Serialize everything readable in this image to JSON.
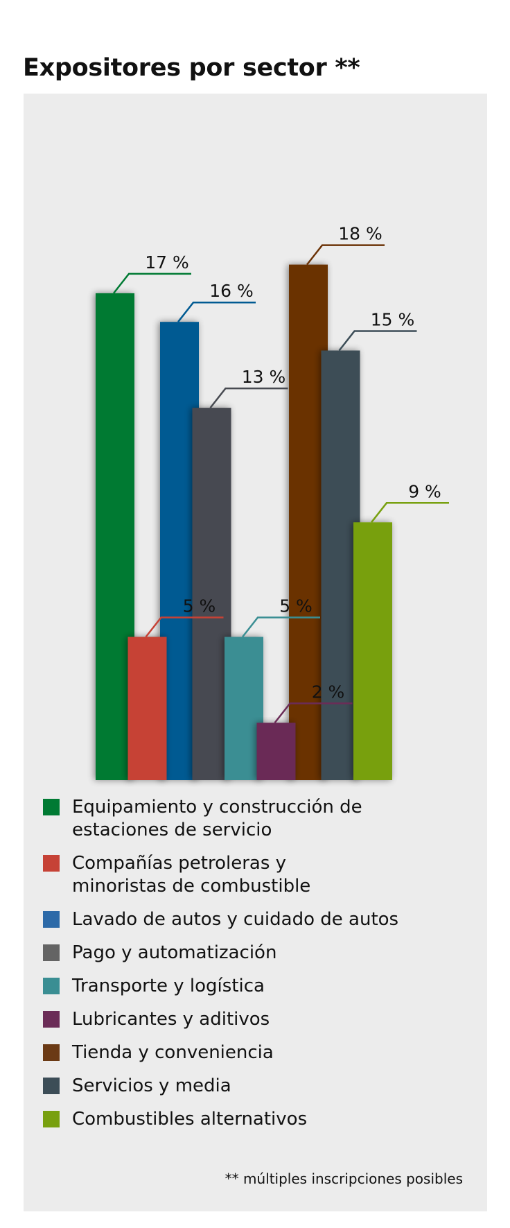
{
  "title": "Expositores por sector **",
  "footnote": "** múltiples inscripciones posibles",
  "chart_data": {
    "type": "bar",
    "title": "Expositores por sector **",
    "unit": "%",
    "ylim": [
      0,
      18
    ],
    "grid": false,
    "legend_placement": "bottom",
    "categories": [
      "Equipamiento y construcción de estaciones de servicio",
      "Compañías petroleras y minoristas de combustible",
      "Lavado de autos y cuidado de autos",
      "Pago y automatización",
      "Transporte y logística",
      "Lubricantes y aditivos",
      "Tienda y conveniencia",
      "Servicios y media",
      "Combustibles alternativos"
    ],
    "values": [
      17,
      5,
      16,
      13,
      5,
      2,
      18,
      15,
      9
    ],
    "data_labels": [
      "17 %",
      "5 %",
      "16 %",
      "13 %",
      "5 %",
      "2 %",
      "18 %",
      "15 %",
      "9 %"
    ],
    "colors": [
      "#007a33",
      "#c64236",
      "#005a92",
      "#474a51",
      "#3a8e93",
      "#6b2c57",
      "#6b3206",
      "#3c4d57",
      "#78a00f"
    ],
    "legend_colors": [
      "#007a33",
      "#c64236",
      "#2d6aa8",
      "#646464",
      "#3a8e93",
      "#6b2c57",
      "#6b3a15",
      "#3c4d57",
      "#78a00f"
    ],
    "legend_labels": [
      "Equipamiento y construcción de\nestaciones de servicio",
      "Compañías petroleras y\nminoristas de combustible",
      "Lavado de autos y cuidado de autos",
      "Pago y automatización",
      "Transporte y logística",
      "Lubricantes y aditivos",
      "Tienda y conveniencia",
      "Servicios y media",
      "Combustibles alternativos"
    ]
  }
}
